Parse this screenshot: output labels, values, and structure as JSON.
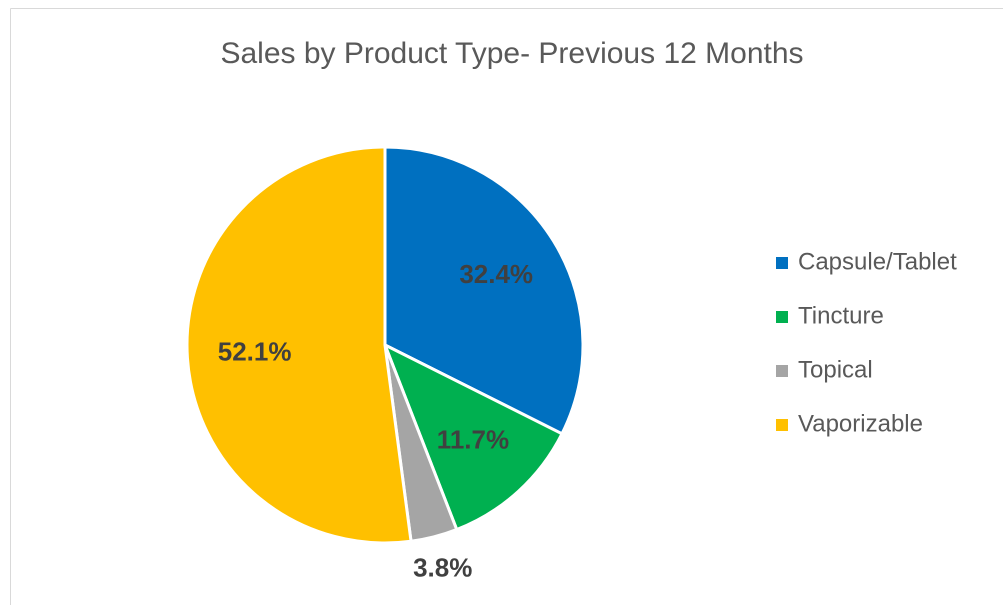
{
  "chart_data": {
    "type": "pie",
    "title": "Sales by Product Type- Previous 12 Months",
    "categories": [
      "Capsule/Tablet",
      "Tincture",
      "Topical",
      "Vaporizable"
    ],
    "values": [
      32.4,
      11.7,
      3.8,
      52.1
    ],
    "value_labels": [
      "32.4%",
      "11.7%",
      "3.8%",
      "52.1%"
    ],
    "colors": [
      "#0070c0",
      "#00b050",
      "#a5a5a5",
      "#ffc000"
    ],
    "legend": "right"
  }
}
